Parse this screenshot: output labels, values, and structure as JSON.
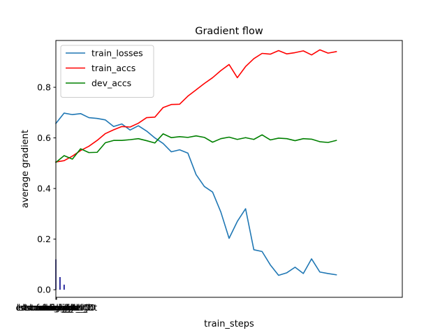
{
  "chart_data": {
    "type": "line",
    "title": "Gradient flow",
    "xlabel": "train_steps",
    "ylabel": "average gradient",
    "xlim": [
      0,
      42
    ],
    "ylim": [
      -0.03,
      0.985
    ],
    "yticks": [
      0.0,
      0.2,
      0.4,
      0.6,
      0.8
    ],
    "ytick_labels": [
      "0.0",
      "0.2",
      "0.4",
      "0.6",
      "0.8"
    ],
    "xtick_labels": [
      "lstm.weight_ih_l0",
      "lstm.weight_hh_l0",
      "lstm.bias_ih_l0",
      "lstm.bias_hh_l0",
      "fc.weight",
      "fc.bias",
      "conv.weight",
      "conv.bias",
      "embedding.weight",
      "out.weight",
      "out.bias"
    ],
    "legend_position": "upper-left",
    "grid": false,
    "gradient_bars": {
      "color": "#00008b",
      "x": [
        0,
        0.5,
        1
      ],
      "heights": [
        0.12,
        0.05,
        0.02
      ]
    },
    "series": [
      {
        "name": "train_losses",
        "color": "#1f77b4",
        "values": [
          0.657,
          0.698,
          0.692,
          0.696,
          0.68,
          0.677,
          0.671,
          0.645,
          0.655,
          0.631,
          0.648,
          0.627,
          0.6,
          0.578,
          0.545,
          0.553,
          0.54,
          0.455,
          0.408,
          0.386,
          0.307,
          0.203,
          0.27,
          0.32,
          0.158,
          0.151,
          0.098,
          0.057,
          0.067,
          0.089,
          0.064,
          0.122,
          0.07,
          0.064,
          0.059
        ]
      },
      {
        "name": "train_accs",
        "color": "#ff0000",
        "values": [
          0.505,
          0.51,
          0.528,
          0.55,
          0.567,
          0.59,
          0.617,
          0.632,
          0.645,
          0.643,
          0.658,
          0.68,
          0.682,
          0.72,
          0.732,
          0.733,
          0.765,
          0.79,
          0.815,
          0.838,
          0.866,
          0.89,
          0.838,
          0.882,
          0.913,
          0.934,
          0.931,
          0.945,
          0.932,
          0.937,
          0.944,
          0.928,
          0.948,
          0.935,
          0.941
        ]
      },
      {
        "name": "dev_accs",
        "color": "#008000",
        "values": [
          0.503,
          0.53,
          0.516,
          0.557,
          0.542,
          0.543,
          0.581,
          0.59,
          0.59,
          0.593,
          0.597,
          0.589,
          0.58,
          0.616,
          0.601,
          0.605,
          0.602,
          0.608,
          0.602,
          0.583,
          0.597,
          0.603,
          0.594,
          0.601,
          0.594,
          0.612,
          0.592,
          0.599,
          0.597,
          0.589,
          0.597,
          0.595,
          0.585,
          0.582,
          0.59
        ]
      }
    ]
  }
}
